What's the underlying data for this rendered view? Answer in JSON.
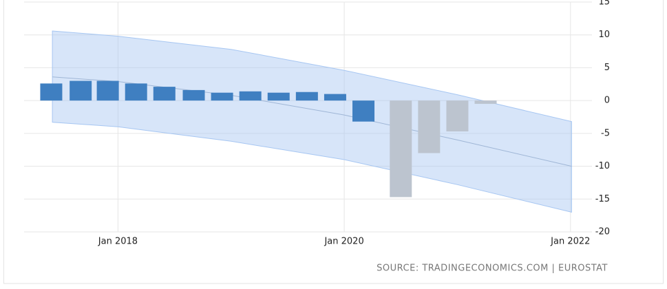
{
  "chart_data": {
    "type": "bar",
    "source": "SOURCE: TRADINGECONOMICS.COM | EUROSTAT",
    "x": [
      2017.41,
      2017.67,
      2017.91,
      2018.16,
      2018.41,
      2018.67,
      2018.92,
      2019.17,
      2019.42,
      2019.67,
      2019.92,
      2020.17,
      2020.5,
      2020.75,
      2021.0,
      2021.25
    ],
    "series": [
      {
        "color": "#3f7fc1",
        "values": [
          2.6,
          3.0,
          3.0,
          2.6,
          2.1,
          1.6,
          1.2,
          1.4,
          1.2,
          1.3,
          1.0,
          -3.2,
          null,
          null,
          null,
          null
        ]
      },
      {
        "color": "#bcc4cf",
        "values": [
          null,
          null,
          null,
          null,
          null,
          null,
          null,
          null,
          null,
          null,
          null,
          null,
          -14.7,
          -8.0,
          -4.7,
          -0.5
        ]
      }
    ],
    "band": {
      "color": "#a6c6f2",
      "x": [
        2017.42,
        2018,
        2019,
        2020,
        2021,
        2022.01
      ],
      "upper": [
        10.6,
        9.8,
        7.8,
        4.6,
        0.9,
        -3.2
      ],
      "lower": [
        -3.3,
        -4.0,
        -6.2,
        -9.0,
        -12.8,
        -17.0
      ],
      "trend": [
        3.6,
        2.9,
        0.8,
        -2.2,
        -6.0,
        -10.0
      ]
    },
    "xlim": [
      2017.17,
      2022.19
    ],
    "xticks": [
      {
        "value": 2018,
        "label": "Jan 2018"
      },
      {
        "value": 2020,
        "label": "Jan 2020"
      },
      {
        "value": 2022,
        "label": "Jan 2022"
      }
    ],
    "ylim": [
      -20,
      15
    ],
    "yticks": [
      15,
      10,
      5,
      0,
      -5,
      -10,
      -15,
      -20
    ],
    "grid": true
  }
}
